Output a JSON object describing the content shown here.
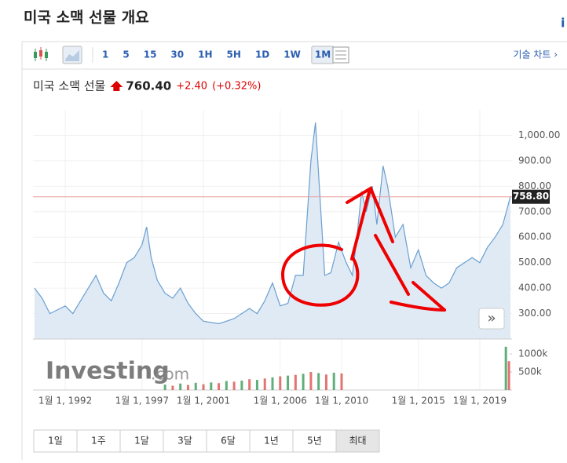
{
  "header": {
    "title": "미국 소맥 선물 개요",
    "info": "i"
  },
  "toolbar": {
    "intervals": [
      "1",
      "5",
      "15",
      "30",
      "1H",
      "5H",
      "1D",
      "1W",
      "1M"
    ],
    "selected": 8,
    "technical": "기술 차트 ›"
  },
  "quote": {
    "name": "미국 소맥 선물",
    "price": "760.40",
    "change": "+2.40",
    "change_pct": "(+0.32%)"
  },
  "chart_data": {
    "type": "line",
    "color": "#6a9fd0",
    "fill": "#dfeaf5",
    "x": [
      1990.0,
      1990.5,
      1991.0,
      1992.0,
      1992.5,
      1993.0,
      1994.0,
      1994.5,
      1995.0,
      1995.5,
      1996.0,
      1996.5,
      1997.0,
      1997.3,
      1997.6,
      1998.0,
      1998.5,
      1999.0,
      1999.5,
      2000.0,
      2000.5,
      2001.0,
      2002.0,
      2002.5,
      2003.0,
      2004.0,
      2004.5,
      2005.0,
      2005.5,
      2006.0,
      2006.5,
      2007.0,
      2007.5,
      2008.0,
      2008.3,
      2008.6,
      2008.9,
      2009.3,
      2009.8,
      2010.3,
      2010.7,
      2011.0,
      2011.3,
      2011.6,
      2012.0,
      2012.3,
      2012.7,
      2013.0,
      2013.5,
      2014.0,
      2014.5,
      2015.0,
      2015.5,
      2016.0,
      2016.5,
      2017.0,
      2017.5,
      2018.0,
      2018.5,
      2019.0,
      2019.5,
      2020.0,
      2020.5,
      2021.0
    ],
    "values": [
      400,
      360,
      300,
      330,
      300,
      350,
      450,
      380,
      350,
      420,
      500,
      520,
      570,
      640,
      520,
      430,
      380,
      360,
      400,
      340,
      300,
      270,
      260,
      270,
      280,
      320,
      300,
      350,
      420,
      330,
      340,
      450,
      450,
      900,
      1050,
      750,
      450,
      460,
      580,
      500,
      450,
      600,
      780,
      700,
      800,
      650,
      880,
      800,
      600,
      650,
      480,
      550,
      450,
      420,
      400,
      420,
      480,
      500,
      520,
      500,
      560,
      600,
      650,
      760
    ],
    "xlim": [
      1989.9,
      2021.1
    ],
    "ylim": [
      200,
      1100
    ],
    "xticks": [
      {
        "value": 1992,
        "label": "1월 1, 1992"
      },
      {
        "value": 1997,
        "label": "1월 1, 1997"
      },
      {
        "value": 2001,
        "label": "1월 1, 2001"
      },
      {
        "value": 2006,
        "label": "1월 1, 2006"
      },
      {
        "value": 2010,
        "label": "1월 1, 2010"
      },
      {
        "value": 2015,
        "label": "1월 1, 2015"
      },
      {
        "value": 2019,
        "label": "1월 1, 2019"
      }
    ],
    "yticks": [
      {
        "value": 300,
        "label": "300.00"
      },
      {
        "value": 400,
        "label": "400.00"
      },
      {
        "value": 500,
        "label": "500.00"
      },
      {
        "value": 600,
        "label": "600.00"
      },
      {
        "value": 700,
        "label": "700.00"
      },
      {
        "value": 800,
        "label": "800.00"
      },
      {
        "value": 900,
        "label": "900.00"
      },
      {
        "value": 1000,
        "label": "1,000.00"
      }
    ],
    "last_price": {
      "value": 758.8,
      "label": "758.80"
    },
    "watermark": {
      "brand": "Investing",
      "suffix": ".com"
    },
    "volume": {
      "x": [
        1998.5,
        1999.0,
        1999.5,
        2000.0,
        2000.5,
        2001.0,
        2001.5,
        2002.0,
        2002.5,
        2003.0,
        2003.5,
        2004.0,
        2004.5,
        2005.0,
        2005.5,
        2006.0,
        2006.5,
        2007.0,
        2007.5,
        2008.0,
        2008.5,
        2009.0,
        2009.5,
        2010.0,
        2020.7,
        2020.9
      ],
      "values": [
        150000,
        120000,
        180000,
        140000,
        200000,
        160000,
        210000,
        190000,
        250000,
        230000,
        260000,
        300000,
        280000,
        320000,
        350000,
        380000,
        400000,
        420000,
        450000,
        500000,
        470000,
        430000,
        480000,
        460000,
        1200000,
        800000
      ],
      "colors": [
        "#3a9a5a",
        "#d9534f"
      ],
      "ylim": [
        0,
        1240000
      ],
      "yticks": [
        {
          "value": 500000,
          "label": "500k"
        },
        {
          "value": 1000000,
          "label": "1000k"
        }
      ]
    }
  },
  "ranges": {
    "buttons": [
      "1일",
      "1주",
      "1달",
      "3달",
      "6달",
      "1년",
      "5년",
      "최대"
    ],
    "selected": 7
  }
}
